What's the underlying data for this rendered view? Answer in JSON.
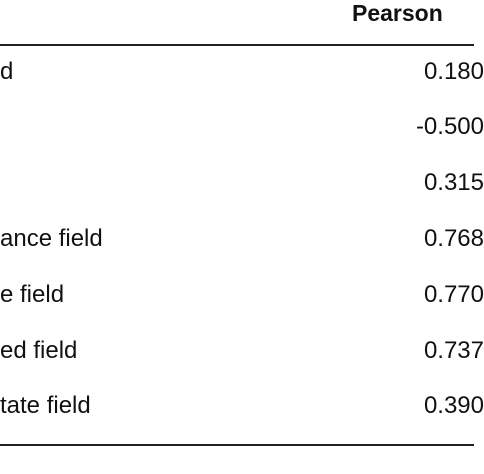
{
  "table": {
    "column_header": "Pearson",
    "rows": [
      {
        "label": "d",
        "value": "0.180"
      },
      {
        "label": "",
        "value": "-0.500"
      },
      {
        "label": "",
        "value": "0.315"
      },
      {
        "label": "ance field",
        "value": "0.768"
      },
      {
        "label": "e field",
        "value": "0.770"
      },
      {
        "label": "ed field",
        "value": "0.737"
      },
      {
        "label": "tate field",
        "value": "0.390"
      }
    ]
  }
}
